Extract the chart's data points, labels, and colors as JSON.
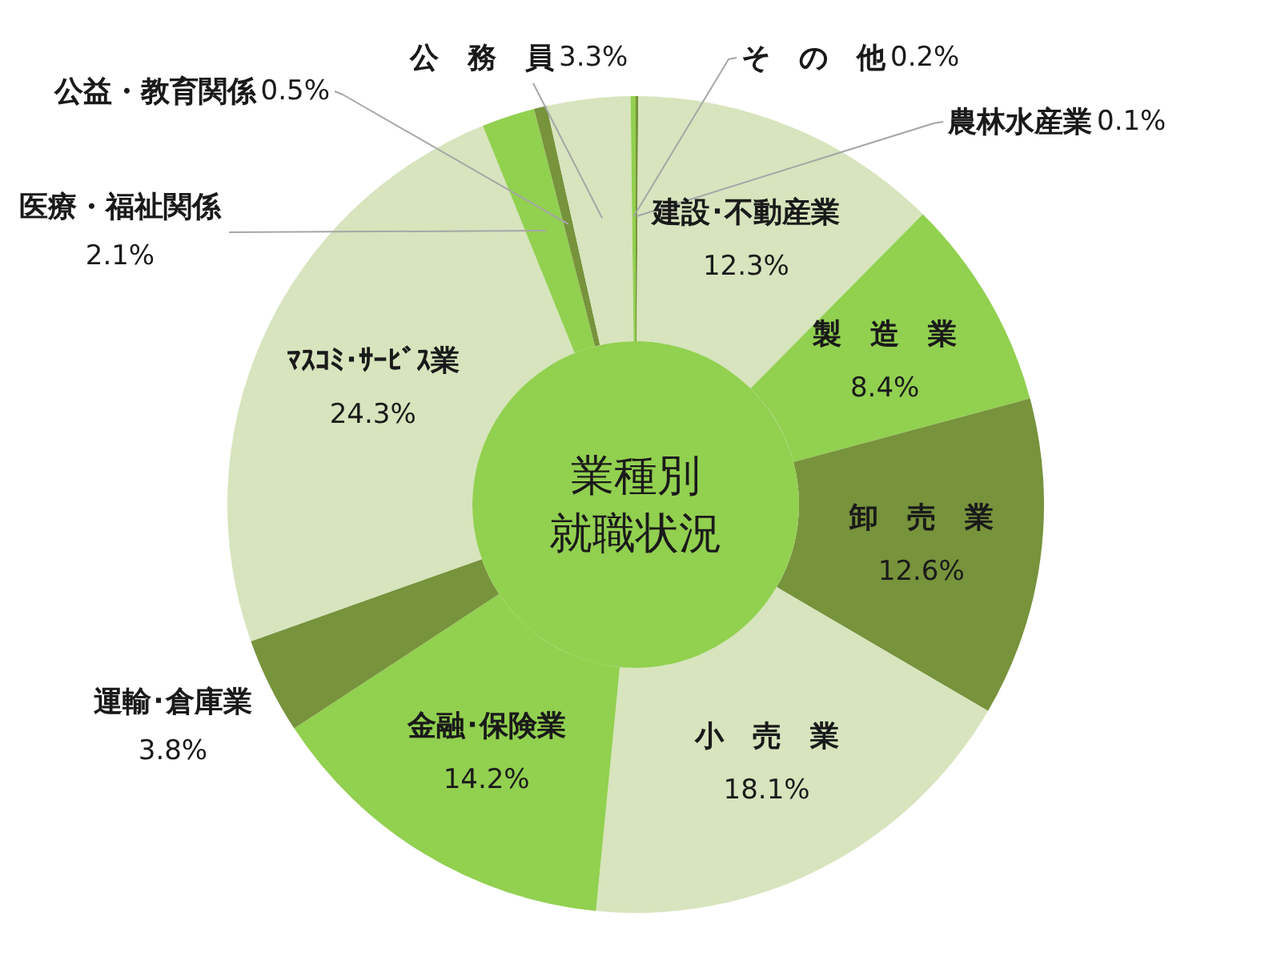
{
  "chart_data": {
    "type": "donut",
    "title": "業種別就職状況",
    "categories": [
      "農林水産業",
      "建設･不動産業",
      "製　造　業",
      "卸　売　業",
      "小　売　業",
      "金融･保険業",
      "運輸･倉庫業",
      "ﾏｽｺﾐ･ｻｰﾋﾞｽ業",
      "医療・福祉関係",
      "公益・教育関係",
      "公　務　員",
      "そ　の　他"
    ],
    "values": [
      0.1,
      12.3,
      8.4,
      12.6,
      18.1,
      14.2,
      3.8,
      24.3,
      2.1,
      0.5,
      3.3,
      0.2
    ],
    "colors": [
      "#77933c",
      "#d7e4bd",
      "#92d050",
      "#77933c",
      "#d7e4bd",
      "#92d050",
      "#77933c",
      "#d7e4bd",
      "#92d050",
      "#77933c",
      "#d7e4bd",
      "#92d050"
    ],
    "value_labels": [
      "0.1%",
      "12.3%",
      "8.4%",
      "12.6%",
      "18.1%",
      "14.2%",
      "3.8%",
      "24.3%",
      "2.1%",
      "0.5%",
      "3.3%",
      "0.2%"
    ]
  }
}
